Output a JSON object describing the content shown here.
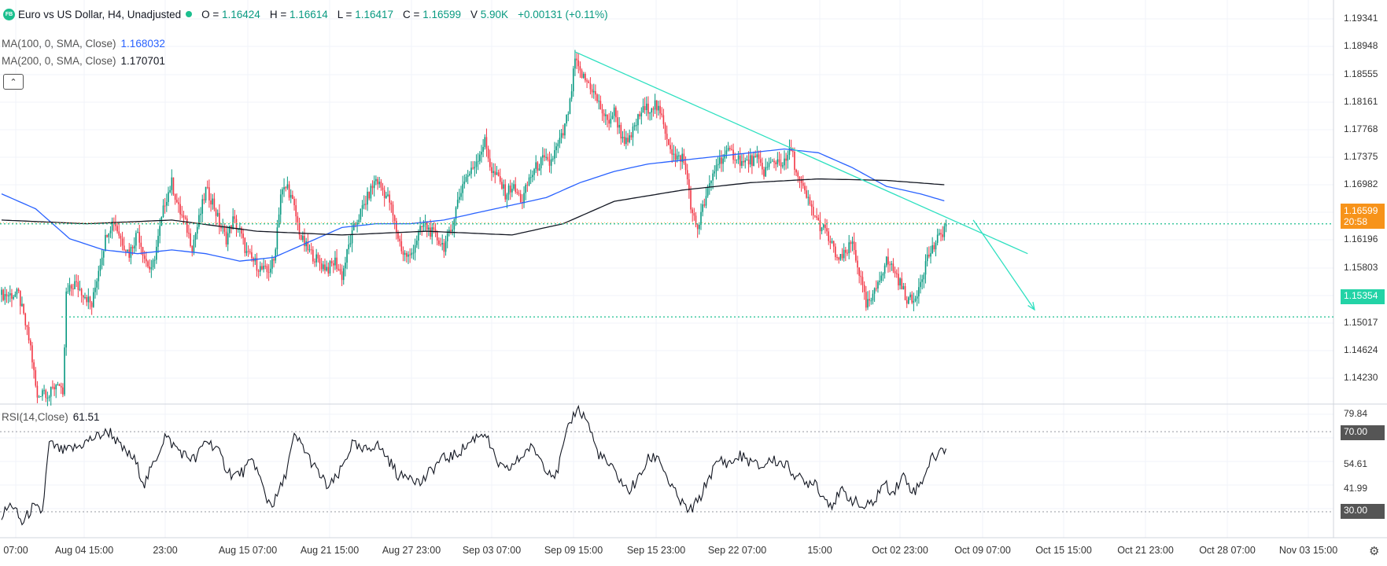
{
  "header": {
    "logo_text": "FB",
    "title": "Euro vs US Dollar, H4, Unadjusted",
    "ohlc": [
      {
        "label": "O =",
        "value": "1.16424"
      },
      {
        "label": "H =",
        "value": "1.16614"
      },
      {
        "label": "L =",
        "value": "1.16417"
      },
      {
        "label": "C =",
        "value": "1.16599"
      },
      {
        "label": "V",
        "value": "5.90K"
      }
    ],
    "change": "+0.00131 (+0.11%)"
  },
  "indicators": {
    "ma100": {
      "label": "MA(100, 0, SMA, Close)",
      "value": "1.168032",
      "color": "#2962ff"
    },
    "ma200": {
      "label": "MA(200, 0, SMA, Close)",
      "value": "1.170701",
      "color": "#131722"
    },
    "rsi": {
      "label": "RSI(14,Close)",
      "value": "61.51"
    }
  },
  "colors": {
    "up": "#089981",
    "down": "#f23645",
    "trendline": "#2ee0c0",
    "price_tag": "#f7931a"
  },
  "price_axis": {
    "labels": [
      "1.19341",
      "1.18948",
      "1.18555",
      "1.18161",
      "1.17768",
      "1.17375",
      "1.16982",
      "1.16196",
      "1.15803",
      "1.15017",
      "1.14624",
      "1.14230"
    ],
    "current_price": "1.16599",
    "countdown": "20:58",
    "support_level": "1.15354"
  },
  "rsi_axis": {
    "labels": [
      "79.84",
      "54.61",
      "41.99"
    ],
    "overbought": "70.00",
    "oversold": "30.00"
  },
  "time_axis": {
    "labels": [
      "07:00",
      "Aug 04 15:00",
      "23:00",
      "Aug 15 07:00",
      "Aug 21 15:00",
      "Aug 27 23:00",
      "Sep 03 07:00",
      "Sep 09 15:00",
      "Sep 15 23:00",
      "Sep 22 07:00",
      "15:00",
      "Oct 02 23:00",
      "Oct 09 07:00",
      "Oct 15 15:00",
      "Oct 21 23:00",
      "Oct 28 07:00",
      "Nov 03 15:00"
    ]
  },
  "chart_data": {
    "type": "candlestick",
    "symbol": "Euro vs US Dollar",
    "timeframe": "H4",
    "ylim": [
      1.14,
      1.196
    ],
    "price_anchors": [
      [
        0,
        1.1565
      ],
      [
        10,
        1.1565
      ],
      [
        17,
        1.1495
      ],
      [
        21,
        1.1425
      ],
      [
        24,
        1.144
      ],
      [
        28,
        1.143
      ],
      [
        33,
        1.145
      ],
      [
        36,
        1.1425
      ],
      [
        38,
        1.1565
      ],
      [
        43,
        1.158
      ],
      [
        49,
        1.1565
      ],
      [
        53,
        1.155
      ],
      [
        57,
        1.16
      ],
      [
        62,
        1.165
      ],
      [
        66,
        1.1665
      ],
      [
        70,
        1.164
      ],
      [
        75,
        1.162
      ],
      [
        80,
        1.165
      ],
      [
        84,
        1.1615
      ],
      [
        88,
        1.1595
      ],
      [
        92,
        1.164
      ],
      [
        96,
        1.169
      ],
      [
        100,
        1.1715
      ],
      [
        104,
        1.168
      ],
      [
        108,
        1.166
      ],
      [
        112,
        1.163
      ],
      [
        116,
        1.1665
      ],
      [
        120,
        1.1705
      ],
      [
        124,
        1.169
      ],
      [
        128,
        1.166
      ],
      [
        132,
        1.164
      ],
      [
        136,
        1.1665
      ],
      [
        140,
        1.165
      ],
      [
        144,
        1.162
      ],
      [
        148,
        1.161
      ],
      [
        152,
        1.16
      ],
      [
        156,
        1.1595
      ],
      [
        160,
        1.161
      ],
      [
        164,
        1.17
      ],
      [
        168,
        1.171
      ],
      [
        172,
        1.168
      ],
      [
        176,
        1.164
      ],
      [
        180,
        1.1625
      ],
      [
        184,
        1.1615
      ],
      [
        188,
        1.1605
      ],
      [
        192,
        1.16
      ],
      [
        196,
        1.161
      ],
      [
        200,
        1.159
      ],
      [
        204,
        1.163
      ],
      [
        208,
        1.166
      ],
      [
        212,
        1.168
      ],
      [
        216,
        1.17
      ],
      [
        220,
        1.172
      ],
      [
        224,
        1.1705
      ],
      [
        228,
        1.169
      ],
      [
        232,
        1.165
      ],
      [
        236,
        1.162
      ],
      [
        240,
        1.1615
      ],
      [
        244,
        1.164
      ],
      [
        248,
        1.166
      ],
      [
        252,
        1.165
      ],
      [
        256,
        1.164
      ],
      [
        260,
        1.163
      ],
      [
        264,
        1.165
      ],
      [
        268,
        1.169
      ],
      [
        272,
        1.172
      ],
      [
        276,
        1.173
      ],
      [
        280,
        1.175
      ],
      [
        284,
        1.177
      ],
      [
        288,
        1.173
      ],
      [
        292,
        1.172
      ],
      [
        296,
        1.17
      ],
      [
        300,
        1.171
      ],
      [
        306,
        1.169
      ],
      [
        310,
        1.172
      ],
      [
        314,
        1.1735
      ],
      [
        318,
        1.1745
      ],
      [
        322,
        1.174
      ],
      [
        326,
        1.176
      ],
      [
        330,
        1.178
      ],
      [
        334,
        1.182
      ],
      [
        337,
        1.188
      ],
      [
        339,
        1.1865
      ],
      [
        342,
        1.1855
      ],
      [
        346,
        1.1845
      ],
      [
        349,
        1.183
      ],
      [
        352,
        1.1815
      ],
      [
        356,
        1.1795
      ],
      [
        360,
        1.181
      ],
      [
        364,
        1.178
      ],
      [
        368,
        1.1765
      ],
      [
        372,
        1.179
      ],
      [
        376,
        1.181
      ],
      [
        380,
        1.1815
      ],
      [
        384,
        1.182
      ],
      [
        388,
        1.18
      ],
      [
        392,
        1.177
      ],
      [
        396,
        1.1745
      ],
      [
        400,
        1.175
      ],
      [
        403,
        1.172
      ],
      [
        406,
        1.167
      ],
      [
        409,
        1.1655
      ],
      [
        412,
        1.168
      ],
      [
        416,
        1.171
      ],
      [
        420,
        1.174
      ],
      [
        424,
        1.175
      ],
      [
        428,
        1.1755
      ],
      [
        432,
        1.175
      ],
      [
        436,
        1.174
      ],
      [
        440,
        1.1745
      ],
      [
        444,
        1.1745
      ],
      [
        448,
        1.173
      ],
      [
        452,
        1.174
      ],
      [
        456,
        1.1745
      ],
      [
        460,
        1.174
      ],
      [
        464,
        1.176
      ],
      [
        468,
        1.172
      ],
      [
        472,
        1.17
      ],
      [
        476,
        1.168
      ],
      [
        480,
        1.166
      ],
      [
        484,
        1.165
      ],
      [
        488,
        1.163
      ],
      [
        492,
        1.161
      ],
      [
        496,
        1.162
      ],
      [
        500,
        1.1635
      ],
      [
        504,
        1.1595
      ],
      [
        508,
        1.155
      ],
      [
        512,
        1.156
      ],
      [
        516,
        1.159
      ],
      [
        520,
        1.161
      ],
      [
        524,
        1.16
      ],
      [
        528,
        1.158
      ],
      [
        532,
        1.156
      ],
      [
        536,
        1.1555
      ],
      [
        540,
        1.1585
      ],
      [
        544,
        1.1615
      ],
      [
        548,
        1.163
      ],
      [
        552,
        1.1645
      ],
      [
        555,
        1.166
      ]
    ],
    "ma100_anchors": [
      [
        0,
        1.17
      ],
      [
        20,
        1.168
      ],
      [
        40,
        1.164
      ],
      [
        60,
        1.1625
      ],
      [
        80,
        1.162
      ],
      [
        100,
        1.1625
      ],
      [
        120,
        1.162
      ],
      [
        140,
        1.161
      ],
      [
        160,
        1.1615
      ],
      [
        180,
        1.1635
      ],
      [
        200,
        1.1655
      ],
      [
        220,
        1.166
      ],
      [
        240,
        1.166
      ],
      [
        260,
        1.1665
      ],
      [
        280,
        1.1675
      ],
      [
        300,
        1.1685
      ],
      [
        320,
        1.1695
      ],
      [
        340,
        1.1715
      ],
      [
        360,
        1.173
      ],
      [
        380,
        1.174
      ],
      [
        400,
        1.1745
      ],
      [
        420,
        1.175
      ],
      [
        440,
        1.1755
      ],
      [
        460,
        1.176
      ],
      [
        480,
        1.1755
      ],
      [
        500,
        1.1735
      ],
      [
        520,
        1.171
      ],
      [
        540,
        1.17
      ],
      [
        555,
        1.169
      ]
    ],
    "ma200_anchors": [
      [
        0,
        1.1665
      ],
      [
        50,
        1.166
      ],
      [
        100,
        1.1665
      ],
      [
        150,
        1.165
      ],
      [
        200,
        1.1645
      ],
      [
        250,
        1.165
      ],
      [
        300,
        1.1645
      ],
      [
        330,
        1.166
      ],
      [
        360,
        1.169
      ],
      [
        400,
        1.1705
      ],
      [
        440,
        1.1715
      ],
      [
        480,
        1.172
      ],
      [
        520,
        1.1718
      ],
      [
        555,
        1.1712
      ]
    ],
    "trendline": {
      "from": {
        "i": 337,
        "price": 1.189
      },
      "to": {
        "i": 603,
        "price": 1.162
      }
    },
    "forecast_arrow": {
      "from": {
        "i": 571,
        "price": 1.1665
      },
      "to": {
        "i": 607,
        "price": 1.1545
      }
    },
    "levels": {
      "current": 1.16599,
      "support": 1.15354
    },
    "rsi": {
      "ylim": [
        20,
        84
      ],
      "overbought": 70,
      "oversold": 30,
      "anchors": [
        [
          0,
          28
        ],
        [
          6,
          34
        ],
        [
          12,
          24
        ],
        [
          18,
          32
        ],
        [
          24,
          30
        ],
        [
          28,
          64
        ],
        [
          36,
          60
        ],
        [
          44,
          62
        ],
        [
          52,
          66
        ],
        [
          60,
          69
        ],
        [
          64,
          70
        ],
        [
          70,
          62
        ],
        [
          78,
          56
        ],
        [
          84,
          44
        ],
        [
          90,
          55
        ],
        [
          96,
          68
        ],
        [
          100,
          64
        ],
        [
          108,
          58
        ],
        [
          114,
          56
        ],
        [
          120,
          66
        ],
        [
          126,
          62
        ],
        [
          132,
          52
        ],
        [
          136,
          48
        ],
        [
          142,
          50
        ],
        [
          148,
          56
        ],
        [
          156,
          36
        ],
        [
          160,
          34
        ],
        [
          166,
          46
        ],
        [
          172,
          67
        ],
        [
          176,
          64
        ],
        [
          184,
          52
        ],
        [
          192,
          42
        ],
        [
          198,
          48
        ],
        [
          206,
          64
        ],
        [
          212,
          60
        ],
        [
          220,
          64
        ],
        [
          226,
          58
        ],
        [
          234,
          47
        ],
        [
          240,
          49
        ],
        [
          246,
          44
        ],
        [
          252,
          50
        ],
        [
          258,
          56
        ],
        [
          266,
          58
        ],
        [
          272,
          62
        ],
        [
          278,
          67
        ],
        [
          284,
          70
        ],
        [
          290,
          56
        ],
        [
          296,
          50
        ],
        [
          304,
          56
        ],
        [
          310,
          62
        ],
        [
          314,
          60
        ],
        [
          320,
          52
        ],
        [
          326,
          48
        ],
        [
          330,
          62
        ],
        [
          334,
          74
        ],
        [
          338,
          82
        ],
        [
          344,
          76
        ],
        [
          350,
          60
        ],
        [
          356,
          54
        ],
        [
          362,
          48
        ],
        [
          368,
          40
        ],
        [
          374,
          46
        ],
        [
          380,
          56
        ],
        [
          386,
          58
        ],
        [
          392,
          45
        ],
        [
          398,
          36
        ],
        [
          404,
          30
        ],
        [
          410,
          36
        ],
        [
          416,
          48
        ],
        [
          422,
          56
        ],
        [
          428,
          54
        ],
        [
          434,
          58
        ],
        [
          440,
          55
        ],
        [
          446,
          52
        ],
        [
          452,
          56
        ],
        [
          460,
          54
        ],
        [
          466,
          49
        ],
        [
          472,
          44
        ],
        [
          478,
          46
        ],
        [
          482,
          38
        ],
        [
          488,
          34
        ],
        [
          494,
          40
        ],
        [
          500,
          36
        ],
        [
          506,
          32
        ],
        [
          512,
          34
        ],
        [
          518,
          44
        ],
        [
          524,
          40
        ],
        [
          530,
          48
        ],
        [
          536,
          40
        ],
        [
          540,
          44
        ],
        [
          546,
          56
        ],
        [
          552,
          60
        ],
        [
          555,
          62
        ]
      ]
    }
  }
}
